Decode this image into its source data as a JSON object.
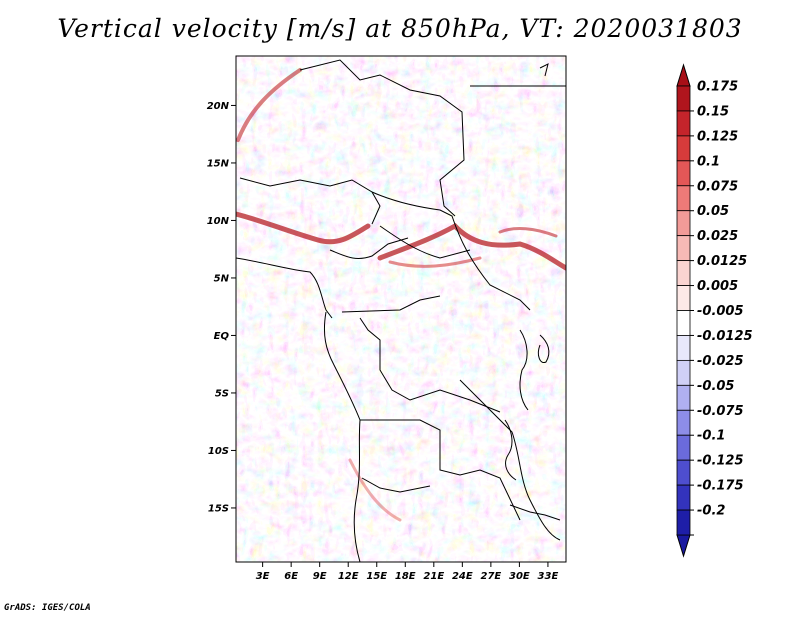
{
  "title": "Vertical velocity [m/s] at 850hPa, VT: 2020031803",
  "credit": "GrADS: IGES/COLA",
  "map": {
    "lat_labels": [
      {
        "label": "20N",
        "lat": 20
      },
      {
        "label": "15N",
        "lat": 15
      },
      {
        "label": "10N",
        "lat": 10
      },
      {
        "label": "5N",
        "lat": 5
      },
      {
        "label": "EQ",
        "lat": 0
      },
      {
        "label": "5S",
        "lat": -5
      },
      {
        "label": "10S",
        "lat": -10
      },
      {
        "label": "15S",
        "lat": -15
      }
    ],
    "lon_labels": [
      {
        "label": "3E",
        "lon": 3
      },
      {
        "label": "6E",
        "lon": 6
      },
      {
        "label": "9E",
        "lon": 9
      },
      {
        "label": "12E",
        "lon": 12
      },
      {
        "label": "15E",
        "lon": 15
      },
      {
        "label": "18E",
        "lon": 18
      },
      {
        "label": "21E",
        "lon": 21
      },
      {
        "label": "24E",
        "lon": 24
      },
      {
        "label": "27E",
        "lon": 27
      },
      {
        "label": "30E",
        "lon": 30
      },
      {
        "label": "33E",
        "lon": 33
      }
    ],
    "lon_range": [
      0.2,
      34.9
    ],
    "lat_range": [
      -19.7,
      24.3
    ]
  },
  "colorbar": {
    "levels": [
      {
        "label": "0.175",
        "color": "#b0151d"
      },
      {
        "label": "0.15",
        "color": "#c4242b"
      },
      {
        "label": "0.125",
        "color": "#d63b3b"
      },
      {
        "label": "0.1",
        "color": "#e35757"
      },
      {
        "label": "0.075",
        "color": "#ed7a78"
      },
      {
        "label": "0.05",
        "color": "#f29b98"
      },
      {
        "label": "0.025",
        "color": "#f7bab6"
      },
      {
        "label": "0.0125",
        "color": "#fad4d1"
      },
      {
        "label": "0.005",
        "color": "#fde9e7"
      },
      {
        "label": "-0.005",
        "color": "#ffffff"
      },
      {
        "label": "-0.0125",
        "color": "#e8e8fb"
      },
      {
        "label": "-0.025",
        "color": "#d0d0f7"
      },
      {
        "label": "-0.05",
        "color": "#b0b0f1"
      },
      {
        "label": "-0.075",
        "color": "#8d8de8"
      },
      {
        "label": "-0.1",
        "color": "#6b6bdc"
      },
      {
        "label": "-0.125",
        "color": "#4e4ecf"
      },
      {
        "label": "-0.175",
        "color": "#3333bd"
      },
      {
        "label": "-0.2",
        "color": "#1e1ea8"
      }
    ],
    "top_color": "#a80f17",
    "bottom_color": "#1a1aa0"
  }
}
